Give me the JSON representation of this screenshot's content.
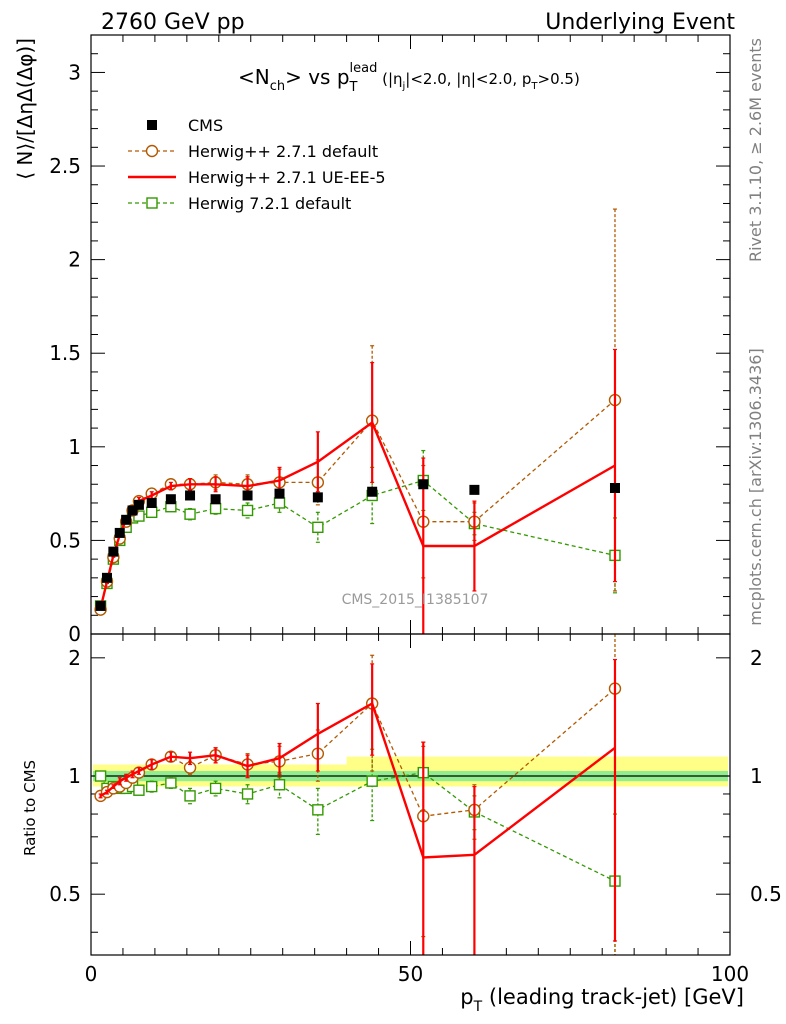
{
  "header": {
    "left": "2760 GeV pp",
    "right": "Underlying Event"
  },
  "side_labels": {
    "rivet": "Rivet 3.1.10, ≥ 2.6M events",
    "mcplots": "mcplots.cern.ch [arXiv:1306.3436]"
  },
  "watermark": "CMS_2015_I1385107",
  "colors": {
    "cms": "#000000",
    "herwigpp_default": "#b35900",
    "herwigpp_ueee5": "#ff0000",
    "herwig7": "#339900",
    "band_inner": "#90ee90",
    "band_outer": "#ffff88"
  },
  "chart_data": [
    {
      "type": "line",
      "title_parts": {
        "pre": "<N",
        "sub1": "ch",
        "mid": "> vs p",
        "sub2": "T",
        "sup2": "lead",
        "cond_a": " (|η",
        "cond_sub": "j",
        "cond_b": "|<2.0, |η|<2.0, p",
        "cond_sub2": "T",
        "cond_c": ">0.5)"
      },
      "ylabel": "⟨ N⟩/[ΔηΔ(Δφ)]",
      "xlim": [
        0,
        100
      ],
      "ylim": [
        0,
        3.2
      ],
      "yticks": [
        "0",
        "0.5",
        "1",
        "1.5",
        "2",
        "2.5",
        "3"
      ],
      "legend_position": "top-left",
      "series": [
        {
          "name": "CMS",
          "style": "data",
          "x": [
            1.5,
            2.5,
            3.5,
            4.5,
            5.5,
            6.5,
            7.5,
            9.5,
            12.5,
            15.5,
            19.5,
            24.5,
            29.5,
            35.5,
            44.0,
            52.0,
            60.0,
            82.0
          ],
          "y": [
            0.15,
            0.3,
            0.44,
            0.54,
            0.61,
            0.66,
            0.69,
            0.7,
            0.72,
            0.74,
            0.72,
            0.74,
            0.75,
            0.73,
            0.76,
            0.8,
            0.77,
            0.78
          ]
        },
        {
          "name": "Herwig++ 2.7.1 default",
          "style": "dashed-circle",
          "x": [
            1.5,
            2.5,
            3.5,
            4.5,
            5.5,
            6.5,
            7.5,
            9.5,
            12.5,
            15.5,
            19.5,
            24.5,
            29.5,
            35.5,
            44.0,
            52.0,
            60.0,
            82.0
          ],
          "y": [
            0.13,
            0.28,
            0.41,
            0.51,
            0.6,
            0.66,
            0.71,
            0.75,
            0.8,
            0.8,
            0.81,
            0.8,
            0.81,
            0.81,
            1.14,
            0.6,
            0.6,
            1.25
          ],
          "err": [
            0.01,
            0.01,
            0.01,
            0.01,
            0.01,
            0.01,
            0.02,
            0.02,
            0.02,
            0.03,
            0.04,
            0.05,
            0.07,
            0.12,
            0.4,
            0.3,
            0.1,
            1.02
          ]
        },
        {
          "name": "Herwig++ 2.7.1 UE-EE-5",
          "style": "solid",
          "x": [
            1.5,
            2.5,
            3.5,
            4.5,
            5.5,
            6.5,
            7.5,
            9.5,
            12.5,
            15.5,
            19.5,
            24.5,
            29.5,
            35.5,
            44.0,
            52.0,
            60.0,
            82.0
          ],
          "y": [
            0.14,
            0.28,
            0.42,
            0.53,
            0.61,
            0.67,
            0.71,
            0.74,
            0.79,
            0.8,
            0.8,
            0.79,
            0.82,
            0.92,
            1.13,
            0.47,
            0.47,
            0.9
          ],
          "err": [
            0.01,
            0.01,
            0.01,
            0.01,
            0.01,
            0.01,
            0.02,
            0.02,
            0.02,
            0.03,
            0.04,
            0.05,
            0.07,
            0.16,
            0.32,
            0.47,
            0.24,
            0.62
          ]
        },
        {
          "name": "Herwig 7.2.1 default",
          "style": "dashed-square",
          "x": [
            1.5,
            2.5,
            3.5,
            4.5,
            5.5,
            6.5,
            7.5,
            9.5,
            12.5,
            15.5,
            19.5,
            24.5,
            29.5,
            35.5,
            44.0,
            52.0,
            60.0,
            82.0
          ],
          "y": [
            0.15,
            0.27,
            0.4,
            0.5,
            0.57,
            0.62,
            0.63,
            0.65,
            0.68,
            0.64,
            0.67,
            0.66,
            0.7,
            0.57,
            0.74,
            0.82,
            0.59,
            0.42
          ],
          "err": [
            0.01,
            0.01,
            0.01,
            0.01,
            0.01,
            0.01,
            0.02,
            0.02,
            0.02,
            0.03,
            0.03,
            0.04,
            0.05,
            0.08,
            0.15,
            0.16,
            0.06,
            0.2
          ]
        }
      ]
    },
    {
      "type": "line",
      "ylabel": "Ratio to CMS",
      "xlabel_parts": {
        "pre": "p",
        "sub": "T",
        "post": " (leading track-jet) [GeV]"
      },
      "xlim": [
        0,
        100
      ],
      "ylim": [
        0.35,
        2.3
      ],
      "yscale": "log",
      "yticks": [
        "0.5",
        "1",
        "2"
      ],
      "xticks": [
        "0",
        "50",
        "100"
      ],
      "reference_band": {
        "inner": 0.03,
        "outer_low": 0.06,
        "outer_high_left": 0.07,
        "outer_high_right": 0.12
      },
      "series": [
        {
          "name": "Herwig++ 2.7.1 default",
          "x": [
            1.5,
            2.5,
            3.5,
            4.5,
            5.5,
            6.5,
            7.5,
            9.5,
            12.5,
            15.5,
            19.5,
            24.5,
            29.5,
            35.5,
            44.0,
            52.0,
            60.0,
            82.0
          ],
          "y": [
            0.89,
            0.91,
            0.93,
            0.94,
            0.96,
            0.99,
            1.02,
            1.07,
            1.12,
            1.05,
            1.13,
            1.07,
            1.09,
            1.14,
            1.53,
            0.79,
            0.82,
            1.67
          ],
          "err": [
            0.01,
            0.01,
            0.01,
            0.02,
            0.02,
            0.02,
            0.02,
            0.03,
            0.03,
            0.04,
            0.05,
            0.07,
            0.1,
            0.17,
            0.5,
            0.4,
            0.13,
            1.4
          ]
        },
        {
          "name": "Herwig++ 2.7.1 UE-EE-5",
          "x": [
            1.5,
            2.5,
            3.5,
            4.5,
            5.5,
            6.5,
            7.5,
            9.5,
            12.5,
            15.5,
            19.5,
            24.5,
            29.5,
            35.5,
            44.0,
            52.0,
            60.0,
            82.0
          ],
          "y": [
            0.89,
            0.91,
            0.94,
            0.97,
            0.99,
            1.01,
            1.03,
            1.07,
            1.12,
            1.11,
            1.13,
            1.06,
            1.11,
            1.28,
            1.53,
            0.62,
            0.63,
            1.18
          ],
          "err": [
            0.01,
            0.01,
            0.01,
            0.02,
            0.02,
            0.02,
            0.02,
            0.03,
            0.03,
            0.04,
            0.05,
            0.07,
            0.1,
            0.25,
            0.4,
            0.6,
            0.31,
            0.8
          ]
        },
        {
          "name": "Herwig 7.2.1 default",
          "x": [
            1.5,
            2.5,
            3.5,
            4.5,
            5.5,
            6.5,
            7.5,
            9.5,
            12.5,
            15.5,
            19.5,
            24.5,
            29.5,
            35.5,
            44.0,
            52.0,
            60.0,
            82.0
          ],
          "y": [
            1.0,
            0.93,
            0.94,
            0.93,
            0.93,
            0.94,
            0.92,
            0.94,
            0.96,
            0.89,
            0.93,
            0.9,
            0.95,
            0.82,
            0.97,
            1.02,
            0.81,
            0.54
          ],
          "err": [
            0.01,
            0.01,
            0.01,
            0.02,
            0.02,
            0.02,
            0.02,
            0.03,
            0.03,
            0.04,
            0.04,
            0.05,
            0.07,
            0.11,
            0.2,
            0.2,
            0.08,
            0.26
          ]
        }
      ]
    }
  ]
}
